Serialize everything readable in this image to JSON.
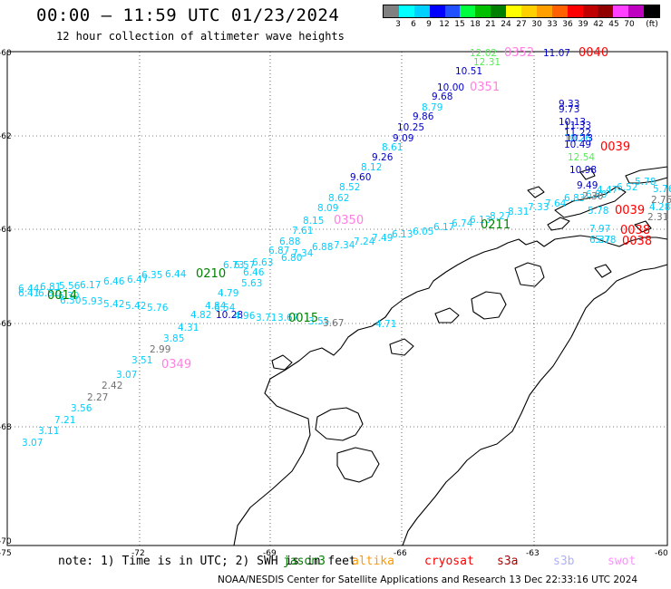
{
  "header": {
    "title": "00:00 – 11:59 UTC 01/23/2024",
    "subtitle": "12 hour collection of altimeter wave heights"
  },
  "colorbar": {
    "colors": [
      "#808080",
      "#00ffff",
      "#00d0ff",
      "#0000ff",
      "#2050ff",
      "#00ff40",
      "#00c000",
      "#008000",
      "#ffff00",
      "#ffd000",
      "#ffa000",
      "#ff6000",
      "#ff0000",
      "#c00000",
      "#900000",
      "#ff40ff",
      "#c000c0",
      "#000000"
    ],
    "labels": [
      "3",
      "6",
      "9",
      "12",
      "15",
      "18",
      "21",
      "24",
      "27",
      "30",
      "33",
      "36",
      "39",
      "42",
      "45",
      "70",
      "(ft)"
    ]
  },
  "axes": {
    "lat_labels": [
      "-60",
      "-62",
      "-64",
      "-66",
      "-68",
      "-70"
    ],
    "lon_labels": [
      "-75",
      "-72",
      "-69",
      "-66",
      "-63",
      "-60"
    ]
  },
  "satellite_colors": {
    "jason3": "#00d0ff",
    "altika": "#ff9900",
    "cryosat": "#ff0000",
    "s3a": "#b00000",
    "s3b": "#b0b0ff",
    "swot": "#ff90ff",
    "s6": "#00aa00",
    "gray": "#707070",
    "blue": "#0000cc",
    "green": "#55ee55"
  },
  "time_labels": [
    {
      "text": "0352",
      "color": "#ff80e0"
    },
    {
      "text": "0040",
      "color": "#ff0000"
    },
    {
      "text": "0351",
      "color": "#ff80e0"
    },
    {
      "text": "0039",
      "color": "#ff0000"
    },
    {
      "text": "0350",
      "color": "#ff80e0"
    },
    {
      "text": "0211",
      "color": "#008000"
    },
    {
      "text": "0210",
      "color": "#008000"
    },
    {
      "text": "0014",
      "color": "#008000"
    },
    {
      "text": "0015",
      "color": "#008000"
    },
    {
      "text": "0349",
      "color": "#ff80e0"
    },
    {
      "text": "0039",
      "color": "#ff0000"
    },
    {
      "text": "0038",
      "color": "#ff0000"
    },
    {
      "text": "0038",
      "color": "#ff0000"
    }
  ],
  "track_values": {
    "swot_track": [
      "12.02",
      "12.31",
      "10.51",
      "10.00",
      "9.68",
      "8.79",
      "9.86",
      "10.25",
      "9.09",
      "8.61",
      "9.26",
      "8.12",
      "9.60",
      "8.52",
      "8.62",
      "8.09",
      "8.15"
    ],
    "cryo_track": [
      "11.07",
      "9.33",
      "9.73",
      "10.13",
      "11.33",
      "11.22",
      "10.26",
      "10.49",
      "10.13",
      "12.54",
      "10.98",
      "9.49"
    ],
    "s6_upper": [
      "7.61",
      "6.88",
      "6.87",
      "6.80",
      "7.34",
      "6.88",
      "7.34",
      "7.24",
      "7.49",
      "6.13",
      "6.05",
      "6.17",
      "6.74",
      "6.13",
      "8.27",
      "8.31",
      "7.33",
      "7.64",
      "6.83",
      "6.80",
      "5.78",
      "7.97",
      "6.37",
      "6.52",
      "5.78"
    ],
    "mid_track": [
      "6.57",
      "6.63",
      "6.73",
      "6.46",
      "5.63",
      "4.79",
      "4.84",
      "4.82",
      "6.54",
      "6.44",
      "6.35",
      "6.47",
      "6.46",
      "6.17",
      "5.56",
      "6.81",
      "6.44",
      "6.30",
      "5.93",
      "5.42",
      "5.42",
      "5.76"
    ],
    "lower_track": [
      "10.28",
      "4.96",
      "3.71",
      "3.67",
      "3.55",
      "3.67",
      "4.71"
    ],
    "s6_left": [
      "6.41",
      "6.81",
      "6.30"
    ],
    "jason_diag": [
      "4.31",
      "3.85",
      "2.99",
      "3.51",
      "3.07",
      "2.42",
      "2.27",
      "3.56",
      "7.21",
      "3.11",
      "3.07"
    ],
    "right_cluster": [
      "2.30",
      "2.75",
      "2.31",
      "4.47",
      "4.28",
      "5.76",
      "5.78"
    ]
  },
  "note": {
    "text": "note: 1) Time is in UTC; 2) SWH is in feet",
    "items": [
      "jason3",
      "altika",
      "cryosat",
      "s3a",
      "s3b",
      "swot"
    ]
  },
  "footer": {
    "text": "NOAA/NESDIS Center for Satellite Applications and Research   13 Dec 22:33:16 UTC 2024"
  }
}
